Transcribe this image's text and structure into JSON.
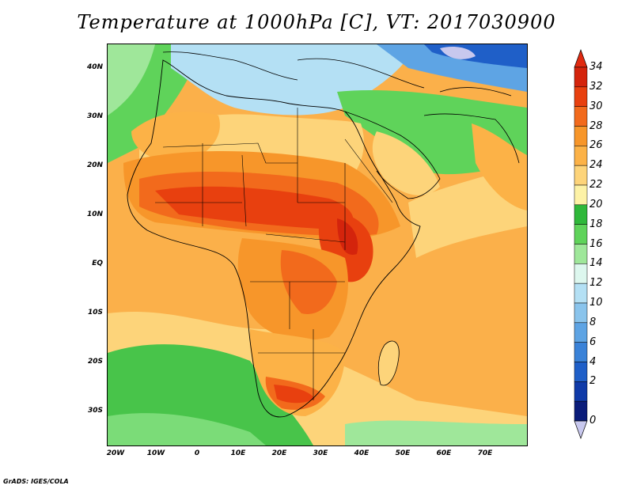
{
  "title": "Temperature at 1000hPa [C], VT: 2017030900",
  "footer": "GrADS: IGES/COLA",
  "y_axis_labels": [
    "40N",
    "30N",
    "20N",
    "10N",
    "EQ",
    "10S",
    "20S",
    "30S"
  ],
  "x_axis_labels": [
    "20W",
    "10W",
    "0",
    "10E",
    "20E",
    "30E",
    "40E",
    "50E",
    "60E",
    "70E"
  ],
  "map_extent": {
    "lon": [
      -22,
      80
    ],
    "lat": [
      -37,
      45
    ]
  },
  "colorbar": {
    "labels": [
      "34",
      "32",
      "30",
      "28",
      "26",
      "24",
      "22",
      "20",
      "18",
      "16",
      "14",
      "12",
      "10",
      "8",
      "6",
      "4",
      "2",
      "0"
    ],
    "colors_top_to_bottom": [
      "#d4240c",
      "#e8400f",
      "#f26a1c",
      "#f7962a",
      "#fcb247",
      "#fdd47a",
      "#fdf2a6",
      "#2fb83a",
      "#5fd35a",
      "#9fe79a",
      "#ddf7ee",
      "#b4e0f4",
      "#8ac4ec",
      "#5ea4e4",
      "#3a82d8",
      "#1f5fc8",
      "#0f3aa8",
      "#0a1c7a"
    ],
    "over_color": "#e02a10",
    "under_color": "#c8c8ee"
  }
}
